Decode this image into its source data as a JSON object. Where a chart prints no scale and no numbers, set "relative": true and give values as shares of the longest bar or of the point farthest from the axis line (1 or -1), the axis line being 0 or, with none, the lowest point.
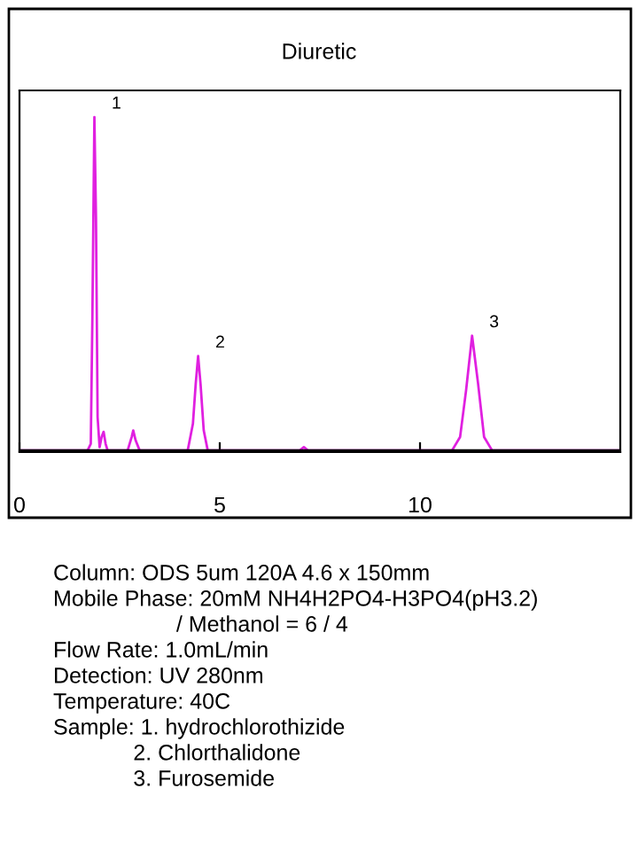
{
  "chart_data": {
    "type": "line",
    "title": "Diuretic",
    "relative": true,
    "xlim": [
      0,
      15
    ],
    "xticks": [
      0,
      5,
      10
    ],
    "grid": false,
    "legend": false,
    "marker": "none",
    "line_style": "solid",
    "series": [
      {
        "color": "#e020e0",
        "x": [
          0,
          1.7,
          1.78,
          1.82,
          1.87,
          1.91,
          1.95,
          2.0,
          2.05,
          2.1,
          2.15,
          2.2,
          2.7,
          2.8,
          2.84,
          2.9,
          3.0,
          4.2,
          4.33,
          4.4,
          4.46,
          4.52,
          4.6,
          4.7,
          7.0,
          7.1,
          7.2,
          10.8,
          11.0,
          11.15,
          11.3,
          11.45,
          11.6,
          11.8,
          15
        ],
        "values": [
          0,
          0,
          0.02,
          0.4,
          1,
          0.7,
          0.1,
          0.01,
          0.04,
          0.056,
          0.02,
          0,
          0,
          0.04,
          0.06,
          0.03,
          0,
          0,
          0.08,
          0.2,
          0.283,
          0.2,
          0.06,
          0,
          0,
          0.01,
          0,
          0,
          0.04,
          0.18,
          0.344,
          0.2,
          0.04,
          0,
          0
        ]
      }
    ],
    "annotations": [
      {
        "text": "1",
        "x": 1.87,
        "y": 1
      },
      {
        "text": "2",
        "x": 4.46,
        "y": 0.283
      },
      {
        "text": "3",
        "x": 11.3,
        "y": 0.344
      },
      "Column: ODS 5um 120A 4.6 x 150mm",
      "Mobile Phase: 20mM NH4H2PO4-H3PO4(pH3.2)",
      "                    / Methanol = 6 / 4",
      "Flow Rate: 1.0mL/min",
      "Detection: UV 280nm",
      "Temperature: 40C",
      "Sample: 1. hydrochlorothizide",
      "             2. Chlorthalidone",
      "             3. Furosemide"
    ]
  }
}
